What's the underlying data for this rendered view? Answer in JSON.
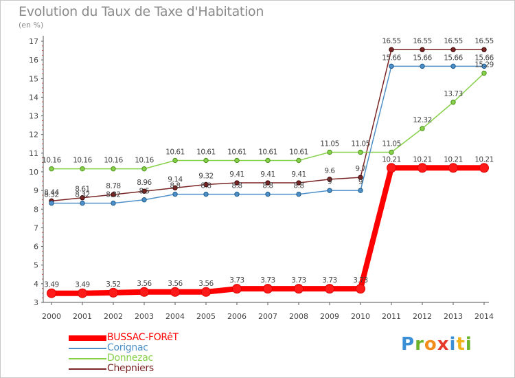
{
  "title": "Evolution du Taux de Taxe d'Habitation",
  "unit": "(en %)",
  "logo": {
    "letters": [
      "P",
      "r",
      "o",
      "x",
      "i",
      "t",
      "i"
    ],
    "colors": [
      "#3a8fd6",
      "#6ab42c",
      "#f28c1a",
      "#e53a2a",
      "#3a8fd6",
      "#f2b21a",
      "#6ab42c"
    ]
  },
  "chart_data": {
    "type": "line",
    "title": "Evolution du Taux de Taxe d'Habitation",
    "ylabel": "(en %)",
    "xlabel": "",
    "x": [
      "2000",
      "2001",
      "2002",
      "2003",
      "2004",
      "2005",
      "2006",
      "2007",
      "2008",
      "2009",
      "2010",
      "2011",
      "2012",
      "2013",
      "2014"
    ],
    "ylim": [
      3,
      17
    ],
    "yticks": [
      "3",
      "4",
      "5",
      "6",
      "7",
      "8",
      "9",
      "10",
      "11",
      "12",
      "13",
      "14",
      "15",
      "16",
      "17"
    ],
    "grid": false,
    "legend_position": "bottom-left",
    "series": [
      {
        "name": "BUSSAC-FORêT",
        "color": "#ff0000",
        "values": [
          3.49,
          3.49,
          3.52,
          3.56,
          3.56,
          3.56,
          3.73,
          3.73,
          3.73,
          3.73,
          3.73,
          10.21,
          10.21,
          10.21,
          10.21
        ],
        "labels": [
          "3.49",
          "3.49",
          "3.52",
          "3.56",
          "3.56",
          "3.56",
          "3.73",
          "3.73",
          "3.73",
          "3.73",
          "3.73",
          "10.21",
          "10.21",
          "10.21",
          "10.21"
        ]
      },
      {
        "name": "Corignac",
        "color": "#4d90c9",
        "values": [
          8.32,
          8.32,
          8.32,
          8.5,
          8.8,
          8.8,
          8.8,
          8.8,
          8.8,
          9,
          9,
          15.66,
          15.66,
          15.66,
          15.66
        ],
        "labels": [
          "8.32",
          "8.32",
          "8.32",
          "8.5",
          "8.8",
          "8.8",
          "8.8",
          "8.8",
          "8.8",
          "9",
          "9",
          "15.66",
          "15.66",
          "15.66",
          "15.66"
        ]
      },
      {
        "name": "Donnezac",
        "color": "#86d149",
        "values": [
          10.16,
          10.16,
          10.16,
          10.16,
          10.61,
          10.61,
          10.61,
          10.61,
          10.61,
          11.05,
          11.05,
          11.05,
          12.32,
          13.73,
          15.29
        ],
        "labels": [
          "10.16",
          "10.16",
          "10.16",
          "10.16",
          "10.61",
          "10.61",
          "10.61",
          "10.61",
          "10.61",
          "11.05",
          "11.05",
          "11.05",
          "12.32",
          "13.73",
          "15.29"
        ]
      },
      {
        "name": "Chepniers",
        "color": "#7a2424",
        "values": [
          8.44,
          8.61,
          8.78,
          8.96,
          9.14,
          9.32,
          9.41,
          9.41,
          9.41,
          9.6,
          9.7,
          16.55,
          16.55,
          16.55,
          16.55
        ],
        "labels": [
          "8.44",
          "8.61",
          "8.78",
          "8.96",
          "9.14",
          "9.32",
          "9.41",
          "9.41",
          "9.41",
          "9.6",
          "9.7",
          "16.55",
          "16.55",
          "16.55",
          "16.55"
        ]
      }
    ]
  }
}
